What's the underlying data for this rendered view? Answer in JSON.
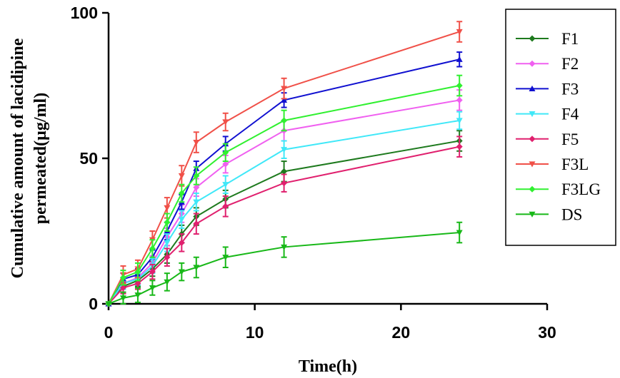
{
  "chart_data": {
    "type": "line",
    "xlabel": "Time(h)",
    "ylabel_line1": "Cumulative amount of lacidipine",
    "ylabel_line2": "permeated(µg/ml)",
    "xlim": [
      0,
      30
    ],
    "ylim": [
      0,
      100
    ],
    "x_ticks": [
      "0",
      "10",
      "20",
      "30"
    ],
    "y_ticks": [
      "0",
      "50",
      "100"
    ],
    "grid": false,
    "legend_position": "top-right",
    "x": [
      0,
      1,
      2,
      3,
      4,
      5,
      6,
      8,
      12,
      24
    ],
    "series": [
      {
        "name": "F1",
        "color": "#1e7a1e",
        "marker": "diamond",
        "values": [
          0,
          6,
          8,
          12,
          17,
          24,
          30,
          36,
          45.5,
          56
        ],
        "errors": [
          0,
          2,
          2,
          2.5,
          3,
          3,
          3,
          3,
          3.5,
          3.5
        ]
      },
      {
        "name": "F2",
        "color": "#f060f0",
        "marker": "diamond",
        "values": [
          0,
          7,
          9,
          14,
          23,
          31,
          40,
          48,
          59.5,
          70
        ],
        "errors": [
          0,
          2,
          2,
          2.5,
          3,
          3,
          3,
          3,
          3.5,
          3.5
        ]
      },
      {
        "name": "F3",
        "color": "#1010d0",
        "marker": "triangle-up",
        "values": [
          0,
          8.5,
          10,
          16,
          25,
          35,
          46.5,
          55,
          70,
          84
        ],
        "errors": [
          0,
          2,
          2,
          2.5,
          3,
          2.5,
          2.5,
          2.5,
          2.5,
          2.5
        ]
      },
      {
        "name": "F4",
        "color": "#40e8f8",
        "marker": "triangle-down",
        "values": [
          0,
          7,
          8.5,
          13,
          21,
          29,
          35,
          41,
          53,
          63
        ],
        "errors": [
          0,
          2,
          2,
          2.5,
          3,
          3,
          3,
          3,
          3,
          3
        ]
      },
      {
        "name": "F5",
        "color": "#e0206e",
        "marker": "diamond",
        "values": [
          0,
          5.5,
          7,
          11,
          16,
          21,
          27.5,
          33.5,
          41.5,
          54
        ],
        "errors": [
          0,
          2,
          2,
          2.5,
          3,
          3,
          3.5,
          3.5,
          3,
          3.5
        ]
      },
      {
        "name": "F3L",
        "color": "#f05048",
        "marker": "triangle-down",
        "values": [
          0,
          10,
          12,
          22,
          33,
          44,
          55.5,
          62.5,
          74,
          93.5
        ],
        "errors": [
          0,
          3,
          3,
          3,
          3.5,
          3.5,
          3.5,
          3,
          3.5,
          3.5
        ]
      },
      {
        "name": "F3LG",
        "color": "#30f030",
        "marker": "diamond",
        "values": [
          0,
          9,
          11,
          19,
          28,
          38,
          44,
          52,
          63,
          75
        ],
        "errors": [
          0,
          2.5,
          3,
          3,
          3,
          3,
          3,
          3,
          3.5,
          3.5
        ]
      },
      {
        "name": "DS",
        "color": "#18b818",
        "marker": "triangle-down",
        "values": [
          0,
          2,
          3,
          5.5,
          7.5,
          11,
          12.5,
          16,
          19.5,
          24.5
        ],
        "errors": [
          0,
          2,
          2.5,
          2.5,
          3,
          3,
          3.5,
          3.5,
          3.5,
          3.5
        ]
      }
    ]
  }
}
